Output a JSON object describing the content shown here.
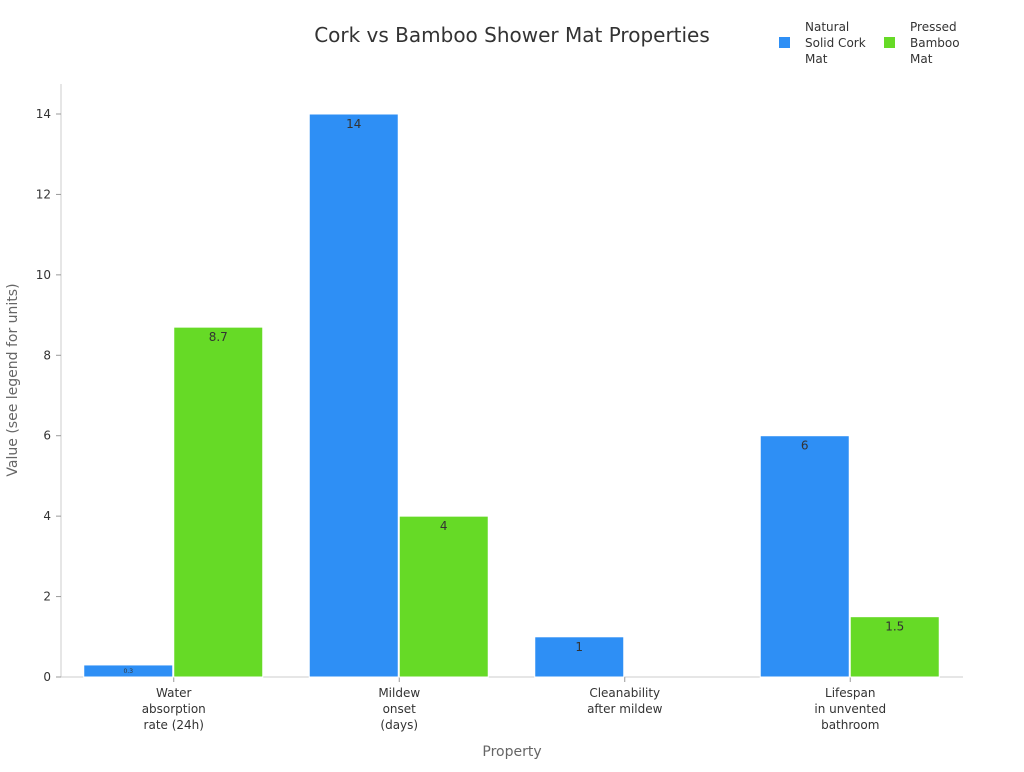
{
  "chart_data": {
    "type": "bar",
    "title": "Cork vs Bamboo Shower Mat Properties",
    "xlabel": "Property",
    "ylabel": "Value (see legend for units)",
    "ylim": [
      0,
      14.7
    ],
    "yticks": [
      "0",
      "2",
      "4",
      "6",
      "8",
      "10",
      "12",
      "14"
    ],
    "categories": [
      [
        "Water",
        "absorption",
        "rate (24h)"
      ],
      [
        "Mildew",
        "onset",
        "(days)"
      ],
      [
        "Cleanability",
        "after mildew"
      ],
      [
        "Lifespan",
        "in unvented",
        "bathroom"
      ]
    ],
    "series": [
      {
        "name": [
          "Natural",
          "Solid Cork",
          "Mat"
        ],
        "color": "#2e8ff5",
        "values": [
          0.3,
          14,
          1,
          6
        ],
        "labels": [
          "0.3",
          "14",
          "1",
          "6"
        ]
      },
      {
        "name": [
          "Pressed",
          "Bamboo",
          "Mat"
        ],
        "color": "#66da26",
        "values": [
          8.7,
          4,
          0,
          1.5
        ],
        "labels": [
          "8.7",
          "4",
          "",
          "1.5"
        ]
      }
    ],
    "legend_position": "top-right",
    "grid": false
  }
}
